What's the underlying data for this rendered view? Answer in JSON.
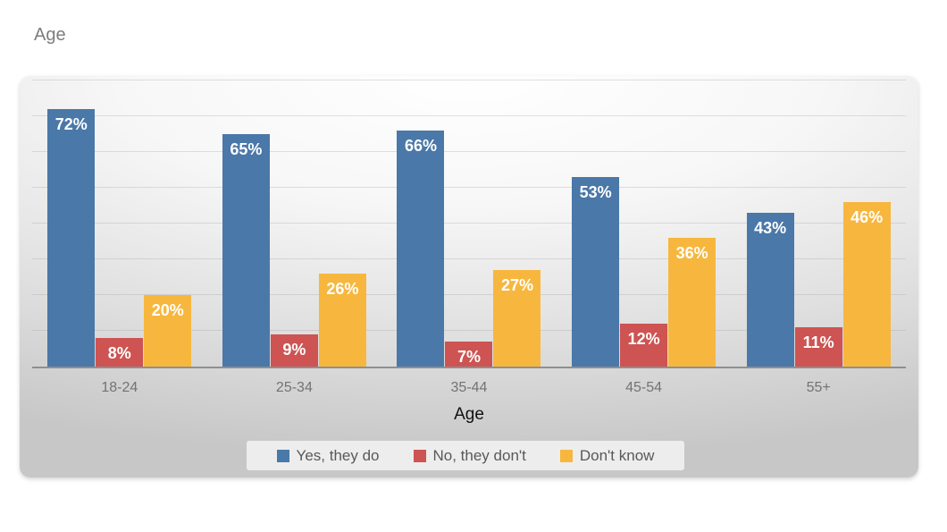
{
  "page": {
    "title": "Age"
  },
  "chart_data": {
    "type": "bar",
    "title": "Age",
    "categories": [
      "18-24",
      "25-34",
      "35-44",
      "45-54",
      "55+"
    ],
    "series": [
      {
        "name": "Yes, they do",
        "color": "#4a78a8",
        "values": [
          72,
          65,
          66,
          53,
          43
        ]
      },
      {
        "name": "No, they don't",
        "color": "#cd5452",
        "values": [
          8,
          9,
          7,
          12,
          11
        ]
      },
      {
        "name": "Don't know",
        "color": "#f7b73e",
        "values": [
          20,
          26,
          27,
          36,
          46
        ]
      }
    ],
    "value_suffix": "%",
    "xlabel": "Age",
    "ylim": [
      0,
      80
    ],
    "gridline_step": 10,
    "grid": true,
    "legend_position": "bottom",
    "data_labels": "inside-end"
  }
}
